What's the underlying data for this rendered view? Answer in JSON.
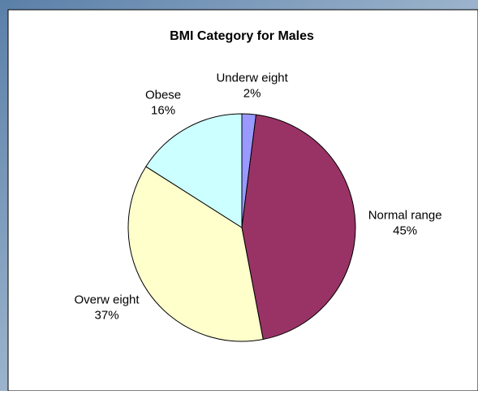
{
  "chart_data": {
    "type": "pie",
    "title": "BMI Category for Males",
    "categories": [
      "Underw eight",
      "Normal range",
      "Overw eight",
      "Obese"
    ],
    "values": [
      2,
      45,
      37,
      16
    ],
    "value_labels": [
      "2%",
      "45%",
      "37%",
      "16%"
    ],
    "colors": [
      "#9999ff",
      "#993366",
      "#ffffcc",
      "#ccffff"
    ]
  }
}
